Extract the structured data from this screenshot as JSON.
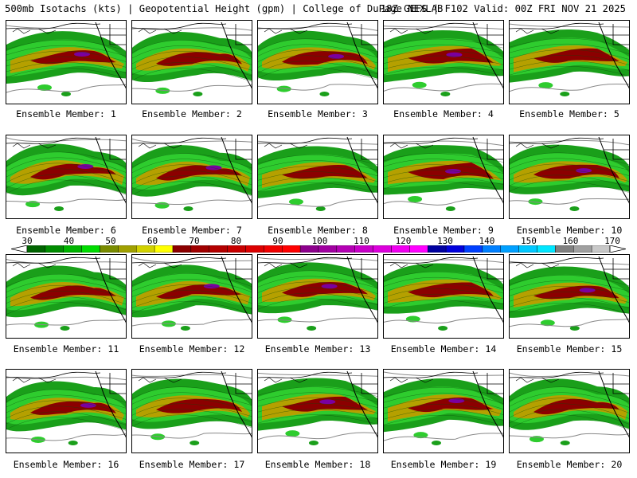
{
  "header": {
    "title_left": "500mb Isotachs (kts) | Geopotential Height (gpm) | College of DuPage NEXLAB",
    "title_right": "18Z GEFS | F102 Valid: 00Z FRI NOV 21 2025"
  },
  "panels": [
    {
      "label": "Ensemble Member: 1"
    },
    {
      "label": "Ensemble Member: 2"
    },
    {
      "label": "Ensemble Member: 3"
    },
    {
      "label": "Ensemble Member: 4"
    },
    {
      "label": "Ensemble Member: 5"
    },
    {
      "label": "Ensemble Member: 6"
    },
    {
      "label": "Ensemble Member: 7"
    },
    {
      "label": "Ensemble Member: 8"
    },
    {
      "label": "Ensemble Member: 9"
    },
    {
      "label": "Ensemble Member: 10"
    },
    {
      "label": "Ensemble Member: 11"
    },
    {
      "label": "Ensemble Member: 12"
    },
    {
      "label": "Ensemble Member: 13"
    },
    {
      "label": "Ensemble Member: 14"
    },
    {
      "label": "Ensemble Member: 15"
    },
    {
      "label": "Ensemble Member: 16"
    },
    {
      "label": "Ensemble Member: 17"
    },
    {
      "label": "Ensemble Member: 18"
    },
    {
      "label": "Ensemble Member: 19"
    },
    {
      "label": "Ensemble Member: 20"
    }
  ],
  "colorbar": {
    "labels": [
      "30",
      "40",
      "50",
      "60",
      "70",
      "80",
      "90",
      "100",
      "110",
      "120",
      "130",
      "140",
      "150",
      "160",
      "170"
    ],
    "colors": [
      "#006400",
      "#008c00",
      "#00b400",
      "#00dc00",
      "#7a8c00",
      "#a0a000",
      "#d2d200",
      "#ffff00",
      "#8c0000",
      "#a00000",
      "#b40000",
      "#c80000",
      "#dc0000",
      "#f00000",
      "#ff0000",
      "#8c008c",
      "#a000a0",
      "#b400b4",
      "#c800c8",
      "#dc00dc",
      "#f000f0",
      "#ff00ff",
      "#0000a0",
      "#0000dc",
      "#0040ff",
      "#0080ff",
      "#00a0ff",
      "#00c8ff",
      "#00e6ff",
      "#808080",
      "#a0a0a0",
      "#c8c8c8"
    ]
  }
}
